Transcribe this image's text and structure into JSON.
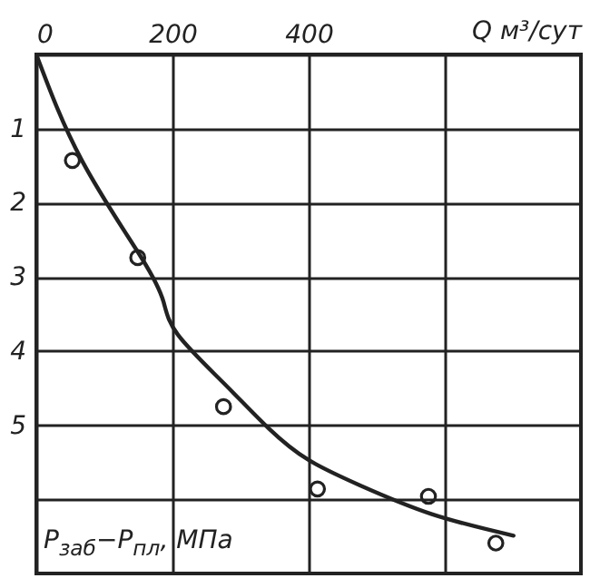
{
  "chart_data": {
    "type": "scatter",
    "xlabel": "Q м³/сут",
    "ylabel": "P$_{заб}$−P$_{пл}$, МПа",
    "series": [
      {
        "type": "scatter",
        "color": "#222222",
        "marker": "circle",
        "x": [
          53,
          149,
          275,
          413,
          576,
          675
        ],
        "values": [
          1.43,
          2.74,
          4.75,
          5.86,
          5.96,
          6.59
        ]
      },
      {
        "type": "line",
        "color": "#222222",
        "line_style": "solid",
        "x": [
          0,
          67,
          155,
          187,
          208,
          275,
          341,
          400,
          475,
          581,
          701
        ],
        "values": [
          0,
          1.43,
          2.75,
          3.34,
          3.78,
          4.43,
          5.04,
          5.47,
          5.81,
          6.2,
          6.49
        ]
      }
    ],
    "xlim": [
      0,
      800
    ],
    "xticks": [
      0,
      200,
      400,
      {
        "value": 600,
        "label": null
      }
    ],
    "ylim": [
      7,
      0
    ],
    "yticks": [
      {
        "value": 0,
        "label": null
      },
      1,
      2,
      3,
      4,
      5,
      {
        "value": 6,
        "label": null
      }
    ],
    "grid": true
  }
}
